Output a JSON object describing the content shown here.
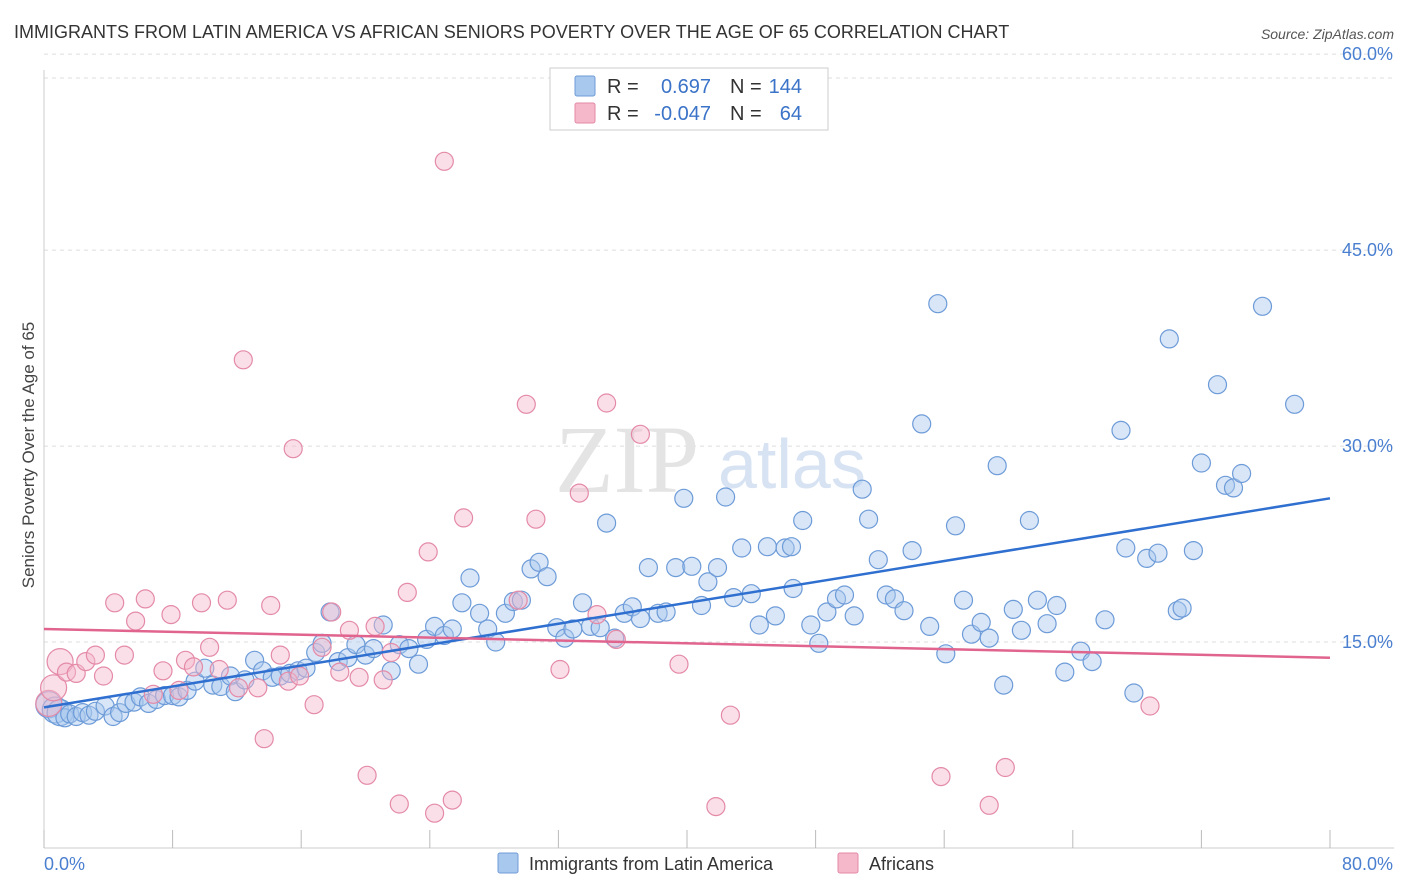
{
  "title": "IMMIGRANTS FROM LATIN AMERICA VS AFRICAN SENIORS POVERTY OVER THE AGE OF 65 CORRELATION CHART",
  "source": "Source: ZipAtlas.com",
  "watermark": {
    "zip": "ZIP",
    "atlas": "atlas"
  },
  "legend": {
    "r_label": "R =",
    "n_label": "N =",
    "rows": [
      {
        "r": "0.697",
        "n": "144"
      },
      {
        "r": "-0.047",
        "n": "64"
      }
    ]
  },
  "bottom_legend": [
    "Immigrants from Latin America",
    "Africans"
  ],
  "colors": {
    "blue_fill": "#a9c8ee",
    "blue_stroke": "#6d9bd8",
    "blue_line": "#2f6fd0",
    "pink_fill": "#f5b8cb",
    "pink_stroke": "#e48aa7",
    "pink_line": "#e0648e",
    "grid": "#dddddd",
    "tick_label": "#4a7fd0"
  },
  "chart_data": {
    "type": "scatter",
    "title": "IMMIGRANTS FROM LATIN AMERICA VS AFRICAN SENIORS POVERTY OVER THE AGE OF 65 CORRELATION CHART",
    "xlabel": "",
    "ylabel": "Seniors Poverty Over the Age of 65",
    "xlim": [
      0,
      80
    ],
    "ylim": [
      0,
      62
    ],
    "x_tick_labels": [
      "0.0%",
      "80.0%"
    ],
    "y_ticks": [
      15,
      30,
      45,
      60
    ],
    "y_tick_labels": [
      "15.0%",
      "30.0%",
      "45.0%",
      "60.0%"
    ],
    "grid": true,
    "legend_position": "top-center",
    "series": [
      {
        "name": "Immigrants from Latin America",
        "r": 0.697,
        "n": 144,
        "trend": [
          [
            0,
            10.0
          ],
          [
            80,
            26.0
          ]
        ],
        "points": [
          [
            0.3,
            10.2
          ],
          [
            0.7,
            9.8
          ],
          [
            1.0,
            9.6
          ],
          [
            1.3,
            9.2
          ],
          [
            1.6,
            9.5
          ],
          [
            2.0,
            9.3
          ],
          [
            2.4,
            9.6
          ],
          [
            2.8,
            9.4
          ],
          [
            3.2,
            9.7
          ],
          [
            3.8,
            10.1
          ],
          [
            4.3,
            9.3
          ],
          [
            4.7,
            9.6
          ],
          [
            5.1,
            10.3
          ],
          [
            5.6,
            10.4
          ],
          [
            6.0,
            10.8
          ],
          [
            6.5,
            10.3
          ],
          [
            7.0,
            10.6
          ],
          [
            7.5,
            10.9
          ],
          [
            8.0,
            10.9
          ],
          [
            8.4,
            10.8
          ],
          [
            8.9,
            11.3
          ],
          [
            9.4,
            12.0
          ],
          [
            10.0,
            13.0
          ],
          [
            10.5,
            11.7
          ],
          [
            11.0,
            11.6
          ],
          [
            11.6,
            12.4
          ],
          [
            11.9,
            11.2
          ],
          [
            12.5,
            12.1
          ],
          [
            13.1,
            13.6
          ],
          [
            13.6,
            12.8
          ],
          [
            14.2,
            12.3
          ],
          [
            14.7,
            12.4
          ],
          [
            15.3,
            12.6
          ],
          [
            15.8,
            12.8
          ],
          [
            16.3,
            13.0
          ],
          [
            16.9,
            14.2
          ],
          [
            17.3,
            14.9
          ],
          [
            17.8,
            17.3
          ],
          [
            18.3,
            13.5
          ],
          [
            18.9,
            13.8
          ],
          [
            19.4,
            14.8
          ],
          [
            20.0,
            14.0
          ],
          [
            20.5,
            14.5
          ],
          [
            21.1,
            16.3
          ],
          [
            21.6,
            12.8
          ],
          [
            22.1,
            14.8
          ],
          [
            22.7,
            14.5
          ],
          [
            23.3,
            13.3
          ],
          [
            23.8,
            15.2
          ],
          [
            24.3,
            16.2
          ],
          [
            24.9,
            15.5
          ],
          [
            25.4,
            16.0
          ],
          [
            26.0,
            18.0
          ],
          [
            26.5,
            19.9
          ],
          [
            27.1,
            17.2
          ],
          [
            27.6,
            16.0
          ],
          [
            28.1,
            15.0
          ],
          [
            28.7,
            17.2
          ],
          [
            29.2,
            18.1
          ],
          [
            29.7,
            18.2
          ],
          [
            30.3,
            20.6
          ],
          [
            30.8,
            21.1
          ],
          [
            31.3,
            20.0
          ],
          [
            31.9,
            16.1
          ],
          [
            32.4,
            15.3
          ],
          [
            32.9,
            16.0
          ],
          [
            33.5,
            18.0
          ],
          [
            34.0,
            16.2
          ],
          [
            34.6,
            16.1
          ],
          [
            35.0,
            24.1
          ],
          [
            35.5,
            15.3
          ],
          [
            36.1,
            17.2
          ],
          [
            36.6,
            17.7
          ],
          [
            37.1,
            16.8
          ],
          [
            37.6,
            20.7
          ],
          [
            38.2,
            17.2
          ],
          [
            38.7,
            17.3
          ],
          [
            39.3,
            20.7
          ],
          [
            39.8,
            26.0
          ],
          [
            40.3,
            20.8
          ],
          [
            40.9,
            17.8
          ],
          [
            41.3,
            19.6
          ],
          [
            41.9,
            20.7
          ],
          [
            42.4,
            26.1
          ],
          [
            42.9,
            18.4
          ],
          [
            43.4,
            22.2
          ],
          [
            44.0,
            18.7
          ],
          [
            44.5,
            16.3
          ],
          [
            45.0,
            22.3
          ],
          [
            45.5,
            17.0
          ],
          [
            46.1,
            22.2
          ],
          [
            46.6,
            19.1
          ],
          [
            47.2,
            24.3
          ],
          [
            47.7,
            16.3
          ],
          [
            48.2,
            14.9
          ],
          [
            48.7,
            17.3
          ],
          [
            49.3,
            18.3
          ],
          [
            49.8,
            18.6
          ],
          [
            50.4,
            17.0
          ],
          [
            50.9,
            26.7
          ],
          [
            51.3,
            24.4
          ],
          [
            51.9,
            21.3
          ],
          [
            52.4,
            18.6
          ],
          [
            52.9,
            18.3
          ],
          [
            53.5,
            17.4
          ],
          [
            54.0,
            22.0
          ],
          [
            54.6,
            31.7
          ],
          [
            55.1,
            16.2
          ],
          [
            55.6,
            40.9
          ],
          [
            56.1,
            14.1
          ],
          [
            56.7,
            23.9
          ],
          [
            57.2,
            18.2
          ],
          [
            57.7,
            15.6
          ],
          [
            58.3,
            16.5
          ],
          [
            58.8,
            15.3
          ],
          [
            59.3,
            28.5
          ],
          [
            59.7,
            11.7
          ],
          [
            60.3,
            17.5
          ],
          [
            60.8,
            15.9
          ],
          [
            61.3,
            24.3
          ],
          [
            61.8,
            18.2
          ],
          [
            62.4,
            16.4
          ],
          [
            63.0,
            17.8
          ],
          [
            63.5,
            12.7
          ],
          [
            64.5,
            14.3
          ],
          [
            65.2,
            13.5
          ],
          [
            66.0,
            16.7
          ],
          [
            67.0,
            31.2
          ],
          [
            67.3,
            22.2
          ],
          [
            67.8,
            11.1
          ],
          [
            68.6,
            21.4
          ],
          [
            69.3,
            21.8
          ],
          [
            70.0,
            38.2
          ],
          [
            70.5,
            17.4
          ],
          [
            70.8,
            17.6
          ],
          [
            71.5,
            22.0
          ],
          [
            72.0,
            28.7
          ],
          [
            73.0,
            34.7
          ],
          [
            73.5,
            27.0
          ],
          [
            74.0,
            26.8
          ],
          [
            74.5,
            27.9
          ],
          [
            75.8,
            40.7
          ],
          [
            77.8,
            33.2
          ],
          [
            46.5,
            22.3
          ]
        ]
      },
      {
        "name": "Africans",
        "r": -0.047,
        "n": 64,
        "trend": [
          [
            0,
            16.0
          ],
          [
            80,
            13.8
          ]
        ],
        "points": [
          [
            0.3,
            10.3
          ],
          [
            0.6,
            11.5
          ],
          [
            1.0,
            13.5
          ],
          [
            1.4,
            12.7
          ],
          [
            2.0,
            12.6
          ],
          [
            2.6,
            13.5
          ],
          [
            3.2,
            14.0
          ],
          [
            3.7,
            12.4
          ],
          [
            4.4,
            18.0
          ],
          [
            5.0,
            14.0
          ],
          [
            5.7,
            16.6
          ],
          [
            6.3,
            18.3
          ],
          [
            6.8,
            11.0
          ],
          [
            7.4,
            12.8
          ],
          [
            7.9,
            17.1
          ],
          [
            8.4,
            11.3
          ],
          [
            8.8,
            13.6
          ],
          [
            9.3,
            13.1
          ],
          [
            9.8,
            18.0
          ],
          [
            10.3,
            14.6
          ],
          [
            10.9,
            12.9
          ],
          [
            11.4,
            18.2
          ],
          [
            12.1,
            11.5
          ],
          [
            12.4,
            36.6
          ],
          [
            13.3,
            11.5
          ],
          [
            13.7,
            7.6
          ],
          [
            14.1,
            17.8
          ],
          [
            14.7,
            14.0
          ],
          [
            15.2,
            12.0
          ],
          [
            15.5,
            29.8
          ],
          [
            15.9,
            12.4
          ],
          [
            16.8,
            10.2
          ],
          [
            17.3,
            14.6
          ],
          [
            17.9,
            17.3
          ],
          [
            18.4,
            12.7
          ],
          [
            19.0,
            15.9
          ],
          [
            19.6,
            12.3
          ],
          [
            20.1,
            4.8
          ],
          [
            20.6,
            16.2
          ],
          [
            21.1,
            12.1
          ],
          [
            21.6,
            14.2
          ],
          [
            22.1,
            2.6
          ],
          [
            22.6,
            18.8
          ],
          [
            23.9,
            21.9
          ],
          [
            24.3,
            1.9
          ],
          [
            24.9,
            51.8
          ],
          [
            25.4,
            2.9
          ],
          [
            26.1,
            24.5
          ],
          [
            29.5,
            18.2
          ],
          [
            30.0,
            33.2
          ],
          [
            30.6,
            24.4
          ],
          [
            32.1,
            12.9
          ],
          [
            33.3,
            26.4
          ],
          [
            34.4,
            17.1
          ],
          [
            35.0,
            33.3
          ],
          [
            35.6,
            15.2
          ],
          [
            37.1,
            30.9
          ],
          [
            39.5,
            13.3
          ],
          [
            41.8,
            2.4
          ],
          [
            42.7,
            9.4
          ],
          [
            55.8,
            4.7
          ],
          [
            58.8,
            2.5
          ],
          [
            59.8,
            5.4
          ],
          [
            68.8,
            10.1
          ]
        ]
      }
    ]
  }
}
